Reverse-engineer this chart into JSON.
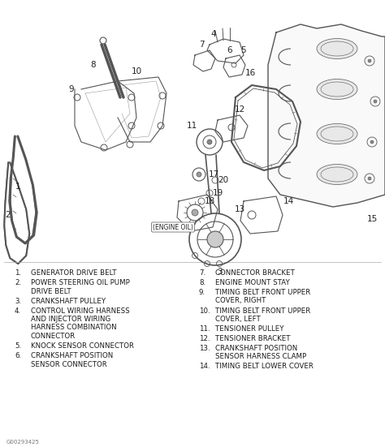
{
  "bg_color": "#ffffff",
  "text_color": "#1a1a1a",
  "figure_code": "G00293425",
  "left_items": [
    {
      "num": "1.",
      "lines": [
        "GENERATOR DRIVE BELT"
      ]
    },
    {
      "num": "2.",
      "lines": [
        "POWER STEERING OIL PUMP",
        "DRIVE BELT"
      ]
    },
    {
      "num": "3.",
      "lines": [
        "CRANKSHAFT PULLEY"
      ]
    },
    {
      "num": "4.",
      "lines": [
        "CONTROL WIRING HARNESS",
        "AND INJECTOR WIRING",
        "HARNESS COMBINATION",
        "CONNECTOR"
      ]
    },
    {
      "num": "5.",
      "lines": [
        "KNOCK SENSOR CONNECTOR"
      ]
    },
    {
      "num": "6.",
      "lines": [
        "CRANKSHAFT POSITION",
        "SENSOR CONNECTOR"
      ]
    }
  ],
  "right_items": [
    {
      "num": "7.",
      "lines": [
        "CONNECTOR BRACKET"
      ]
    },
    {
      "num": "8.",
      "lines": [
        "ENGINE MOUNT STAY"
      ]
    },
    {
      "num": "9.",
      "lines": [
        "TIMING BELT FRONT UPPER",
        "COVER, RIGHT"
      ]
    },
    {
      "num": "10.",
      "lines": [
        "TIMING BELT FRONT UPPER",
        "COVER, LEFT"
      ]
    },
    {
      "num": "11.",
      "lines": [
        "TENSIONER PULLEY"
      ]
    },
    {
      "num": "12.",
      "lines": [
        "TENSIONER BRACKET"
      ]
    },
    {
      "num": "13.",
      "lines": [
        "CRANKSHAFT POSITION",
        "SENSOR HARNESS CLAMP"
      ]
    },
    {
      "num": "14.",
      "lines": [
        "TIMING BELT LOWER COVER"
      ]
    }
  ],
  "diagram_line_color": "#555555",
  "label_color": "#222222",
  "font_size_legend": 6.2,
  "font_size_label": 7.5,
  "font_size_figcode": 5.0
}
